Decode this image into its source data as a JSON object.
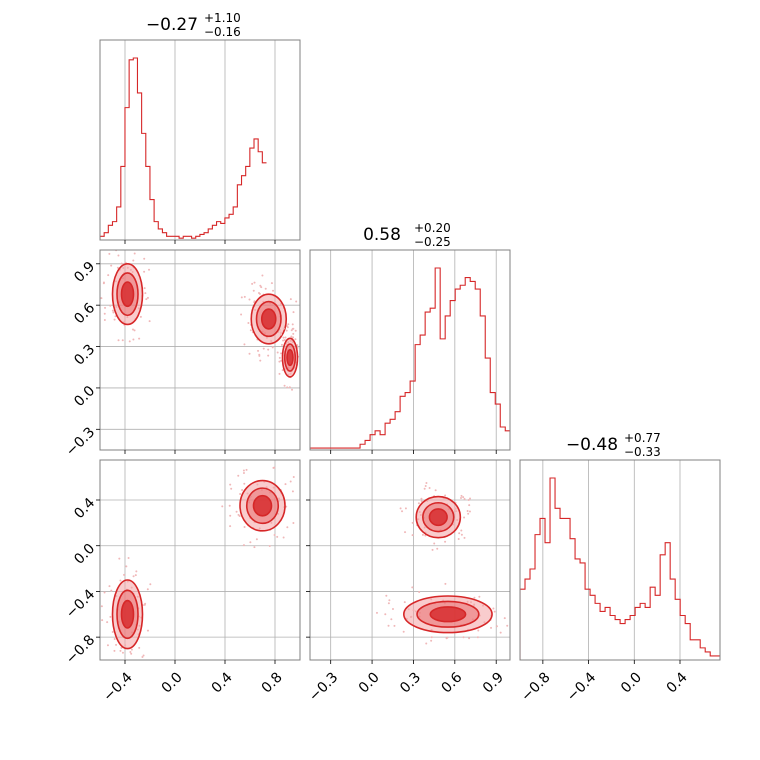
{
  "colors": {
    "accent": "#d62728",
    "fill_light": "#f4a3a4",
    "fill_mid": "#ea6e70",
    "scatter": "#f0b8b9",
    "grid": "#b0b0b0",
    "frame": "#808080"
  },
  "chart_data": {
    "type": "corner",
    "grid": true,
    "panels": [
      {
        "kind": "hist",
        "row": 0,
        "col": 0,
        "title_value": "−0.27",
        "title_plus": "+1.10",
        "title_minus": "−0.16",
        "xlim": [
          -0.6,
          1.0
        ],
        "bins_start": -0.6,
        "bin_width": 0.0333,
        "counts": [
          2,
          4,
          8,
          10,
          18,
          40,
          72,
          98,
          99,
          80,
          58,
          40,
          22,
          10,
          6,
          4,
          2,
          2,
          2,
          1,
          2,
          2,
          1,
          2,
          3,
          4,
          6,
          8,
          10,
          9,
          12,
          14,
          18,
          30,
          35,
          40,
          50,
          55,
          48,
          42
        ]
      },
      {
        "kind": "hist",
        "row": 1,
        "col": 1,
        "title_value": "0.58",
        "title_plus": "+0.20",
        "title_minus": "−0.25",
        "xlim": [
          -0.45,
          1.0
        ],
        "bins_start": -0.45,
        "bin_width": 0.0363,
        "counts": [
          1,
          1,
          1,
          1,
          1,
          1,
          1,
          1,
          1,
          1,
          3,
          5,
          8,
          10,
          8,
          14,
          16,
          20,
          28,
          30,
          36,
          55,
          60,
          72,
          74,
          95,
          58,
          70,
          78,
          84,
          86,
          90,
          88,
          84,
          70,
          48,
          30,
          24,
          12,
          10
        ]
      },
      {
        "kind": "hist",
        "row": 2,
        "col": 2,
        "title_value": "−0.48",
        "title_plus": "+0.77",
        "title_minus": "−0.33",
        "xlim": [
          -1.0,
          0.75
        ],
        "bins_start": -1.0,
        "bin_width": 0.0438,
        "counts": [
          35,
          40,
          45,
          62,
          70,
          58,
          90,
          75,
          70,
          70,
          60,
          50,
          48,
          35,
          32,
          28,
          24,
          26,
          22,
          20,
          18,
          20,
          22,
          26,
          28,
          26,
          36,
          32,
          52,
          58,
          40,
          30,
          22,
          18,
          10,
          10,
          6,
          4,
          2,
          2
        ]
      },
      {
        "kind": "2d",
        "row": 1,
        "col": 0,
        "xlim": [
          -0.6,
          1.0
        ],
        "ylim": [
          -0.45,
          1.0
        ],
        "modes": [
          {
            "center": [
              -0.38,
              0.68
            ],
            "size": [
              0.12,
              0.22
            ]
          },
          {
            "center": [
              0.75,
              0.5
            ],
            "size": [
              0.14,
              0.18
            ]
          },
          {
            "center": [
              0.92,
              0.22
            ],
            "size": [
              0.06,
              0.14
            ]
          }
        ]
      },
      {
        "kind": "2d",
        "row": 2,
        "col": 0,
        "xlim": [
          -0.6,
          1.0
        ],
        "ylim": [
          -1.0,
          0.75
        ],
        "modes": [
          {
            "center": [
              -0.38,
              -0.6
            ],
            "size": [
              0.12,
              0.3
            ]
          },
          {
            "center": [
              0.7,
              0.35
            ],
            "size": [
              0.18,
              0.22
            ]
          }
        ]
      },
      {
        "kind": "2d",
        "row": 2,
        "col": 1,
        "xlim": [
          -0.45,
          1.0
        ],
        "ylim": [
          -1.0,
          0.75
        ],
        "modes": [
          {
            "center": [
              0.48,
              0.25
            ],
            "size": [
              0.16,
              0.18
            ]
          },
          {
            "center": [
              0.55,
              -0.6
            ],
            "size": [
              0.32,
              0.16
            ]
          }
        ]
      }
    ],
    "axes": {
      "x_col0": {
        "ticks": [
          -0.4,
          0.0,
          0.4,
          0.8
        ],
        "labels": [
          "−0.4",
          "0.0",
          "0.4",
          "0.8"
        ]
      },
      "x_col1": {
        "ticks": [
          -0.3,
          0.0,
          0.3,
          0.6,
          0.9
        ],
        "labels": [
          "−0.3",
          "0.0",
          "0.3",
          "0.6",
          "0.9"
        ]
      },
      "x_col2": {
        "ticks": [
          -0.8,
          -0.4,
          0.0,
          0.4
        ],
        "labels": [
          "−0.8",
          "−0.4",
          "0.0",
          "0.4"
        ]
      },
      "y_row1": {
        "ticks": [
          -0.3,
          0.0,
          0.3,
          0.6,
          0.9
        ],
        "labels": [
          "−0.3",
          "0.0",
          "0.3",
          "0.6",
          "0.9"
        ]
      },
      "y_row2": {
        "ticks": [
          -0.8,
          -0.4,
          0.0,
          0.4
        ],
        "labels": [
          "−0.8",
          "−0.4",
          "0.0",
          "0.4"
        ]
      }
    }
  }
}
